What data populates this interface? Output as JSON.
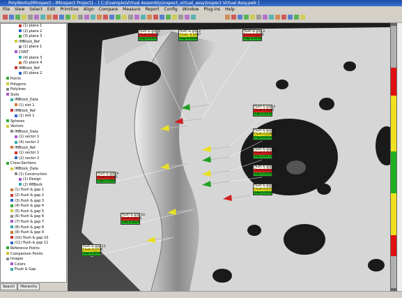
{
  "window": {
    "title": "PolyWorks/IMInspect - IMInspect Project1 - [ C:\\Example\\Virtual Assembly\\inspect_virtual_assy\\Inspect Virtual Assy.pwk ]"
  },
  "menu": [
    "File",
    "View",
    "Select",
    "Edit",
    "Primitive",
    "Align",
    "Compare",
    "Measure",
    "Report",
    "Config",
    "Window",
    "Plug-ins",
    "Help"
  ],
  "tree": [
    "(1) plane 1",
    "(2) plane 2",
    "(3) plane 3",
    "IMBlock_Ref",
    "(1) plane 1",
    "CONT",
    "(4) plane 3",
    "(5) plane 4",
    "IMBlock_Ref",
    "(6) plane 2",
    "Points",
    "Polygons",
    "Polylines",
    "Slots",
    "IMBlock_Data",
    "(1) slot 1",
    "IMBlock_Ref",
    "(1) slot 1",
    "Spheres",
    "Vectors",
    "IMBlock_Data",
    "(1) vector 1",
    "(4) vector 2",
    "IMBlock_Ref",
    "(1) vector 1",
    "(2) vector 2",
    "Cross-Sections",
    "IMBlock_Data",
    "(1) Construction",
    "(1) Design",
    "(2) IMBlock",
    "(1) flush & gap 1",
    "(2) flush & gap 2",
    "(3) flush & gap 3",
    "(4) flush & gap 4",
    "(5) flush & gap 5",
    "(6) flush & gap 6",
    "(7) flush & gap 7",
    "(8) flush & gap 8",
    "(9) flush & gap 9",
    "(10) flush & gap 10",
    "(11) flush & gap 11",
    "Reference Points",
    "Comparison Points",
    "Images",
    "Colors",
    "Flush & Gap"
  ],
  "tabs": [
    "Search",
    "Hierarchy"
  ],
  "callouts": [
    {
      "label": "flush & gap 1",
      "flush": "0.0612",
      "gap": "0.0301"
    },
    {
      "label": "flush & gap 2",
      "flush": "-0.0497",
      "gap": "0.0284"
    },
    {
      "label": "flush & gap 3",
      "flush": "0.0554",
      "gap": "0.0192"
    },
    {
      "label": "flush & gap 4",
      "flush": "0.0441",
      "gap": "0.0233"
    },
    {
      "label": "flush & gap 5",
      "flush": "0.0387",
      "gap": "0.0210"
    },
    {
      "label": "flush & gap 6",
      "flush": "0.0526",
      "gap": "0.0275"
    },
    {
      "label": "flush & gap 7",
      "flush": "0.0618",
      "gap": "0.0296"
    },
    {
      "label": "flush & gap 8",
      "flush": "0.0702",
      "gap": "0.0318"
    },
    {
      "label": "flush & gap 9",
      "flush": "0.0583",
      "gap": "0.0264"
    },
    {
      "label": "flush & gap 10",
      "flush": "0.0671",
      "gap": "0.0247"
    },
    {
      "label": "flush & gap 11",
      "flush": "0.0735",
      "gap": "0.0229"
    }
  ],
  "callout_row_labels": [
    "Flush",
    "Gap"
  ]
}
